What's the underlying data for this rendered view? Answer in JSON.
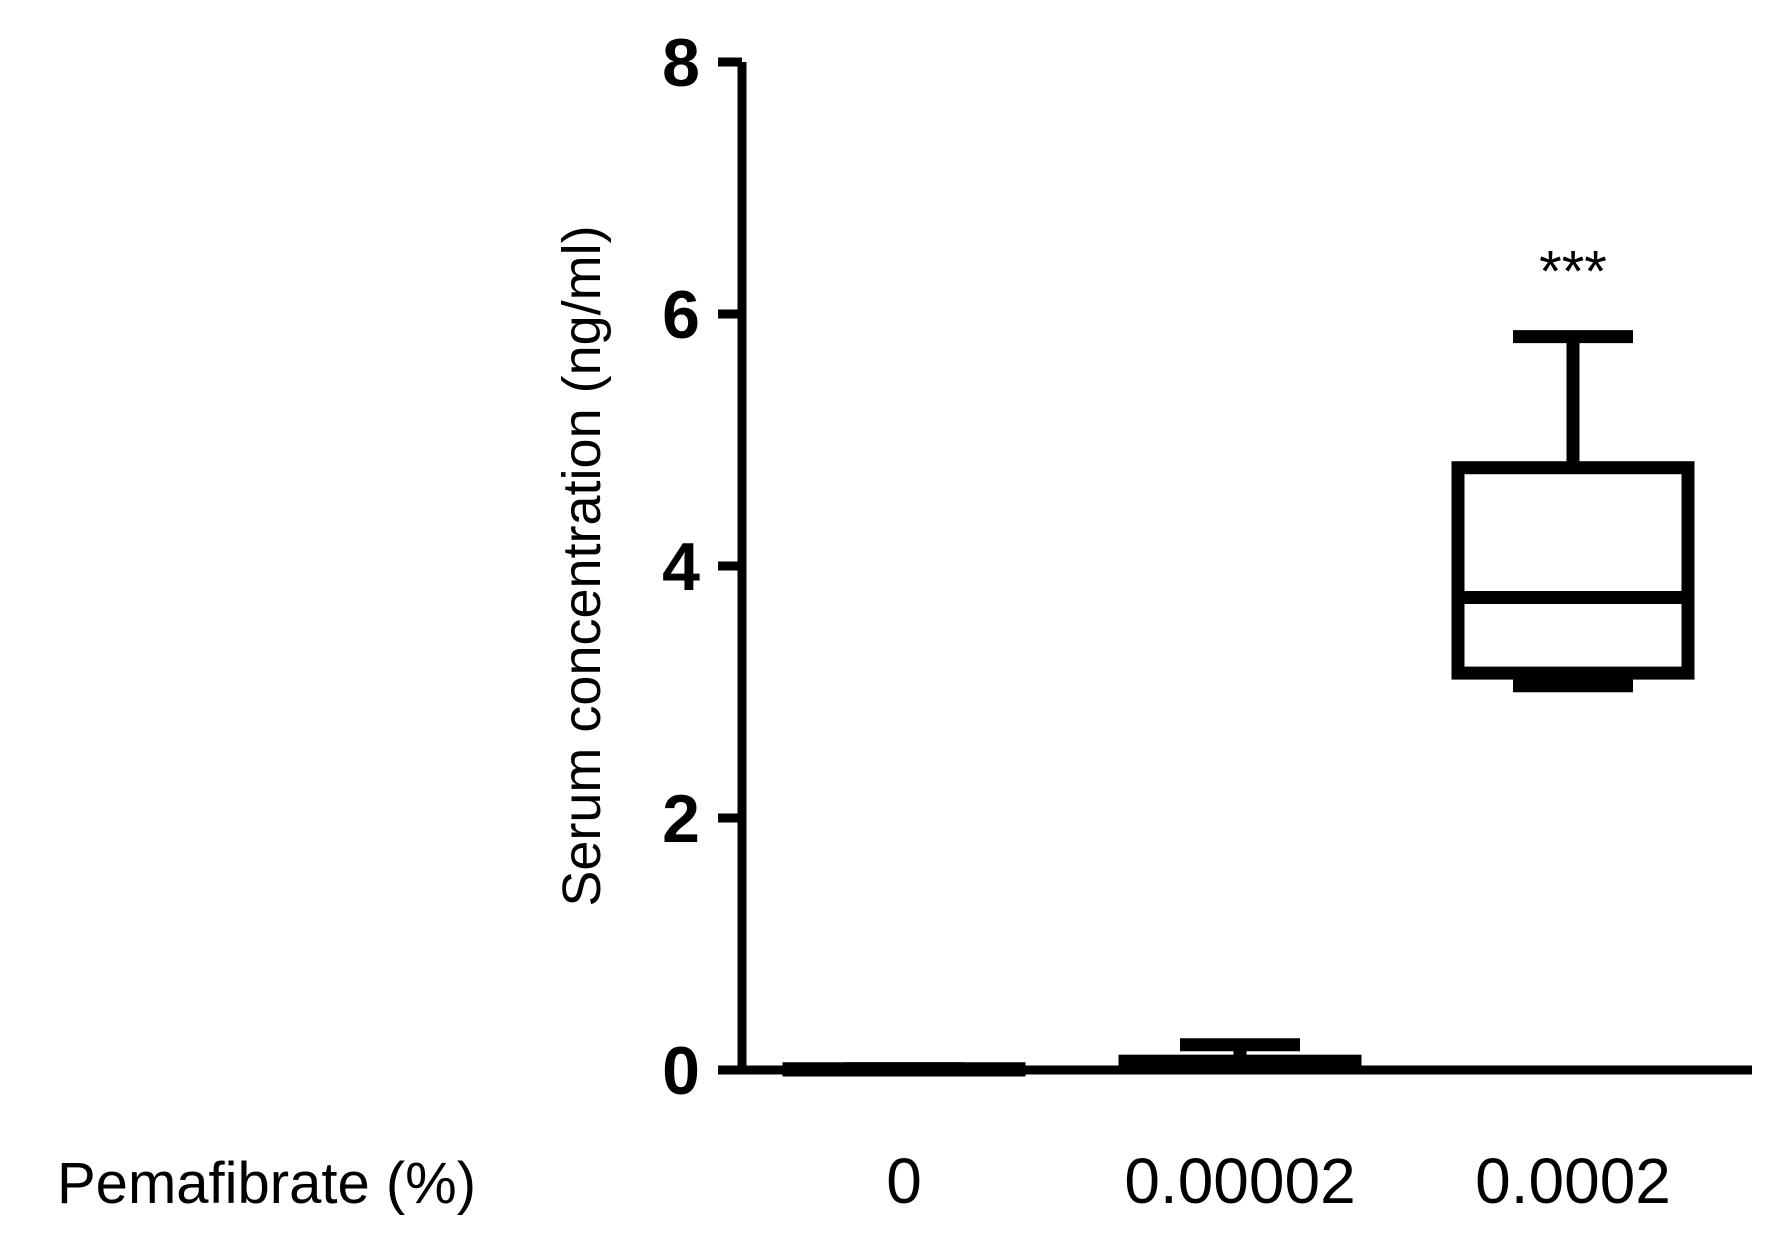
{
  "chart_data": {
    "type": "box",
    "title": "",
    "xlabel": "Pemafibrate (%)",
    "ylabel": "Serum concentration (ng/ml)",
    "ylim": [
      0,
      8
    ],
    "yticks": [
      "0",
      "2",
      "4",
      "6",
      "8"
    ],
    "categories": [
      "0",
      "0.00002",
      "0.0002"
    ],
    "boxes": [
      {
        "category": "0",
        "min": 0.0,
        "q1": 0.0,
        "median": 0.0,
        "q3": 0.01,
        "max": 0.01,
        "annotation": ""
      },
      {
        "category": "0.00002",
        "min": 0.03,
        "q1": 0.04,
        "median": 0.06,
        "q3": 0.07,
        "max": 0.2,
        "annotation": ""
      },
      {
        "category": "0.0002",
        "min": 3.05,
        "q1": 3.15,
        "median": 3.75,
        "q3": 4.78,
        "max": 5.82,
        "annotation": "***"
      }
    ],
    "grid": false,
    "legend": "none"
  }
}
